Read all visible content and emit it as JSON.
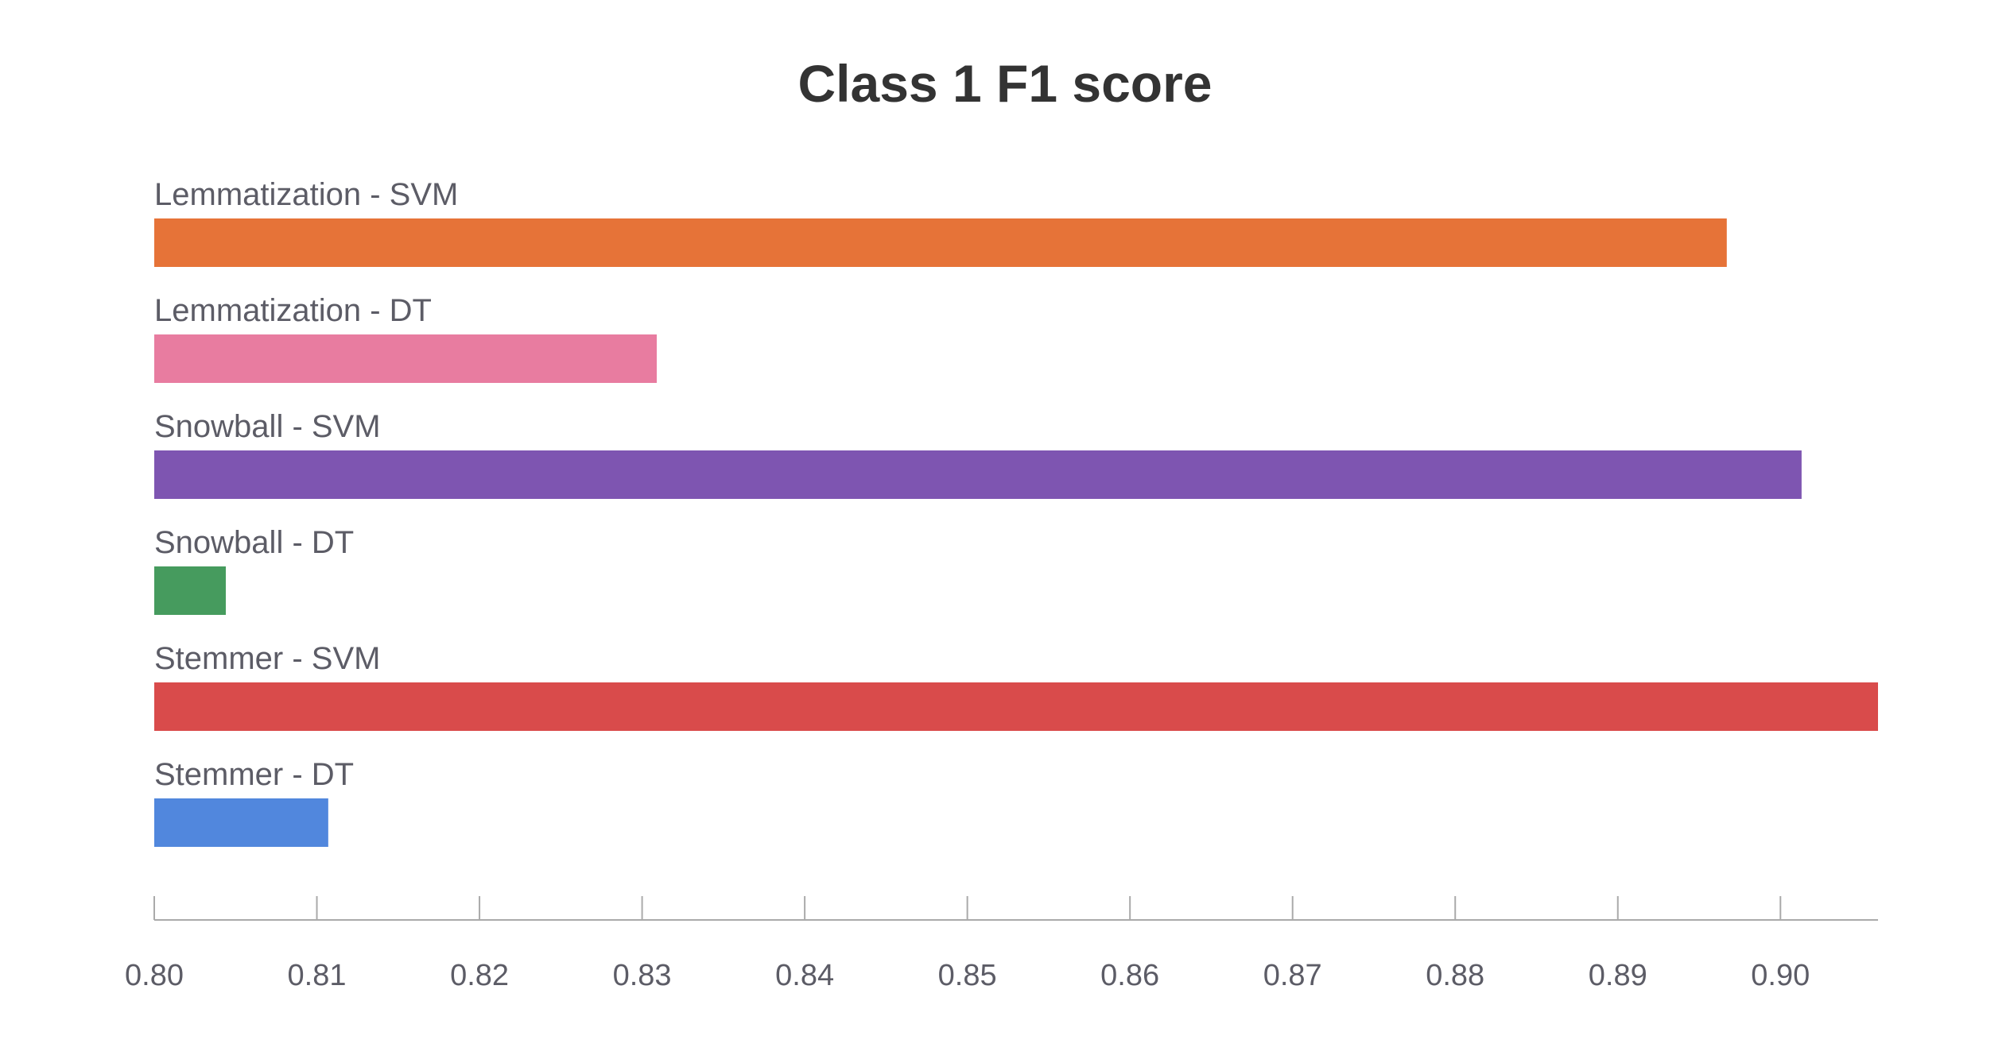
{
  "chart_data": {
    "type": "bar",
    "orientation": "horizontal",
    "title": "Class 1 F1 score",
    "xlabel": "",
    "ylabel": "",
    "xlim": [
      0.8,
      0.906
    ],
    "grid": false,
    "bars": [
      {
        "label": "Lemmatization - SVM",
        "value": 0.8967,
        "color": "#e67338"
      },
      {
        "label": "Lemmatization - DT",
        "value": 0.8309,
        "color": "#e87ca0"
      },
      {
        "label": "Snowball - SVM",
        "value": 0.9013,
        "color": "#7e55b1"
      },
      {
        "label": "Snowball - DT",
        "value": 0.8044,
        "color": "#469b5e"
      },
      {
        "label": "Stemmer - SVM",
        "value": 0.906,
        "color": "#d94b4b"
      },
      {
        "label": "Stemmer - DT",
        "value": 0.8107,
        "color": "#5187dd"
      }
    ],
    "ticks": [
      "0.80",
      "0.81",
      "0.82",
      "0.83",
      "0.84",
      "0.85",
      "0.86",
      "0.87",
      "0.88",
      "0.89",
      "0.90"
    ]
  }
}
